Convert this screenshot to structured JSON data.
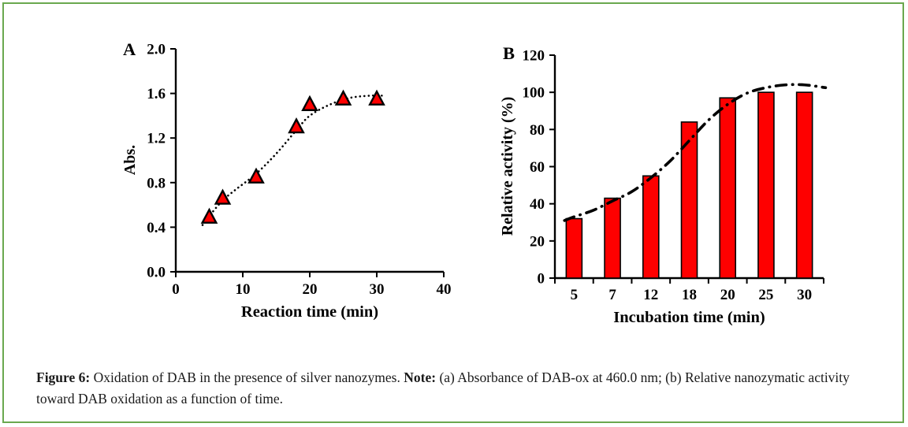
{
  "colors": {
    "border_green": "#6aa84f",
    "red": "#fe0000",
    "black": "#000000"
  },
  "caption": {
    "figure_label": "Figure 6:",
    "figure_text": "Oxidation of DAB in the presence of silver nanozymes.",
    "note_label": "Note:",
    "note_text": "(a) Absorbance of DAB-ox at 460.0 nm; (b) Relative nanozymatic activity toward DAB oxidation as a function of time."
  },
  "chart_data": [
    {
      "id": "A",
      "type": "scatter",
      "panel_label": "A",
      "xlabel": "Reaction time (min)",
      "ylabel": "Abs.",
      "xlim": [
        0,
        40
      ],
      "ylim": [
        0.0,
        2.0
      ],
      "xticks": [
        0,
        10,
        20,
        30,
        40
      ],
      "yticks": [
        0.0,
        0.4,
        0.8,
        1.2,
        1.6,
        2.0
      ],
      "ytick_labels": [
        "0.0",
        "0.4",
        "0.8",
        "1.2",
        "1.6",
        "2.0"
      ],
      "grid": false,
      "legend": "none",
      "marker": "triangle",
      "marker_color": "#fe0000",
      "x": [
        5,
        7,
        12,
        18,
        20,
        25,
        30
      ],
      "y": [
        0.49,
        0.66,
        0.85,
        1.3,
        1.5,
        1.55,
        1.55
      ],
      "trend": {
        "style": "dotted",
        "x": [
          4,
          5,
          7,
          9,
          12,
          15,
          18,
          20,
          23,
          26,
          29,
          31
        ],
        "y": [
          0.42,
          0.5,
          0.64,
          0.74,
          0.88,
          1.06,
          1.27,
          1.4,
          1.5,
          1.56,
          1.58,
          1.58
        ]
      }
    },
    {
      "id": "B",
      "type": "bar",
      "panel_label": "B",
      "xlabel": "Incubation time (min)",
      "ylabel": "Relative activity (%)",
      "ylim": [
        0,
        120
      ],
      "yticks": [
        0,
        20,
        40,
        60,
        80,
        100,
        120
      ],
      "grid": false,
      "legend": "none",
      "bar_color": "#fe0000",
      "categories": [
        "5",
        "7",
        "12",
        "18",
        "20",
        "25",
        "30"
      ],
      "values": [
        32,
        43,
        55,
        84,
        97,
        100,
        100
      ],
      "trend": {
        "style": "dashdot",
        "x_units": "category_index",
        "x": [
          -0.25,
          0,
          0.5,
          1,
          1.5,
          2,
          2.5,
          3,
          3.5,
          4,
          4.5,
          5,
          5.5,
          6,
          6.55
        ],
        "y": [
          31,
          33,
          36.5,
          41.5,
          46.5,
          54,
          63,
          74,
          85,
          93.5,
          99.5,
          102.5,
          104,
          104,
          102.5
        ]
      }
    }
  ]
}
